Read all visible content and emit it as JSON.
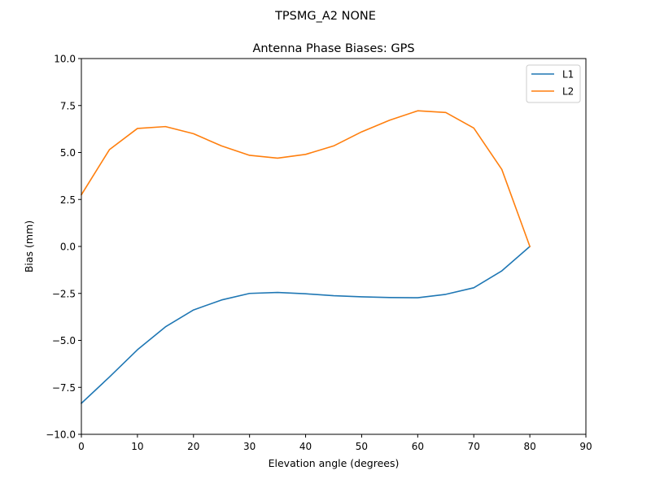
{
  "chart_data": {
    "type": "line",
    "suptitle": "TPSMG_A2         NONE",
    "title": "Antenna Phase Biases: GPS",
    "xlabel": "Elevation angle (degrees)",
    "ylabel": "Bias (mm)",
    "xlim": [
      0,
      90
    ],
    "ylim": [
      -10,
      10
    ],
    "xticks": [
      0,
      10,
      20,
      30,
      40,
      50,
      60,
      70,
      80,
      90
    ],
    "yticks": [
      -10,
      -7.5,
      -5,
      -2.5,
      0,
      2.5,
      5,
      7.5,
      10
    ],
    "xtick_labels": [
      "0",
      "10",
      "20",
      "30",
      "40",
      "50",
      "60",
      "70",
      "80",
      "90"
    ],
    "ytick_labels": [
      "−10.0",
      "−7.5",
      "−5.0",
      "−2.5",
      "0.0",
      "2.5",
      "5.0",
      "7.5",
      "10.0"
    ],
    "grid": false,
    "legend_position": "top-right",
    "x": [
      0,
      5,
      10,
      15,
      20,
      25,
      30,
      35,
      40,
      45,
      50,
      55,
      60,
      65,
      70,
      75,
      80
    ],
    "series": [
      {
        "name": "L1",
        "color": "#1f77b4",
        "values": [
          -8.35,
          -6.95,
          -5.5,
          -4.28,
          -3.38,
          -2.85,
          -2.5,
          -2.45,
          -2.52,
          -2.62,
          -2.68,
          -2.72,
          -2.73,
          -2.55,
          -2.2,
          -1.3,
          0.0
        ]
      },
      {
        "name": "L2",
        "color": "#ff7f0e",
        "values": [
          2.75,
          5.15,
          6.28,
          6.38,
          6.0,
          5.35,
          4.85,
          4.7,
          4.9,
          5.35,
          6.1,
          6.72,
          7.22,
          7.13,
          6.3,
          4.1,
          0.0
        ]
      }
    ]
  }
}
